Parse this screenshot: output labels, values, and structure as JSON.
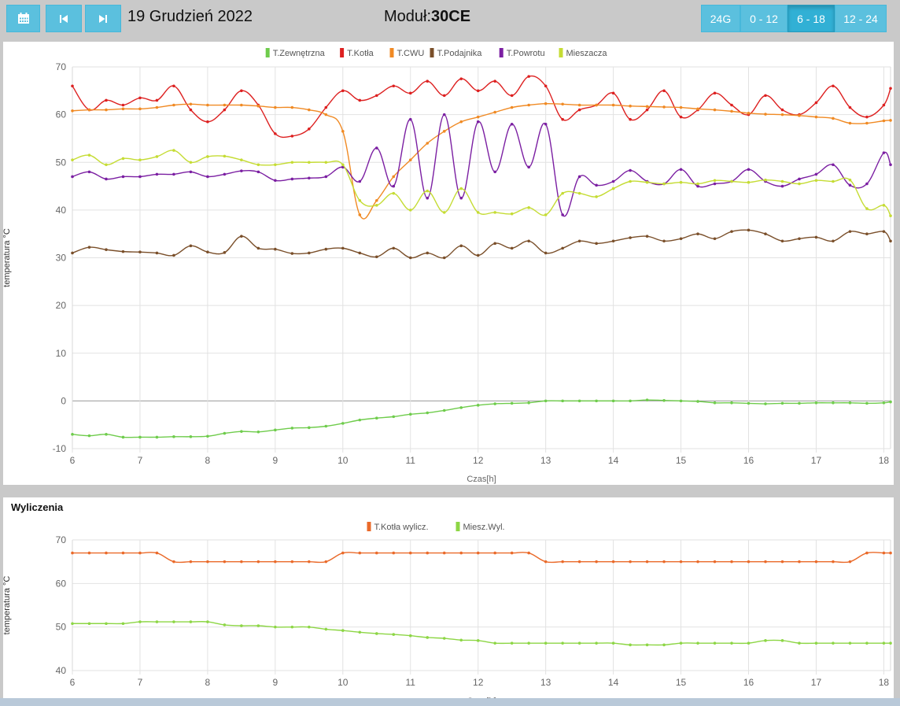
{
  "toolbar": {
    "calendar_icon": "calendar-icon",
    "prev_icon": "skip-back-icon",
    "next_icon": "skip-forward-icon",
    "date": "19 Grudzień 2022",
    "module_label": "Moduł:",
    "module_value": "30CE",
    "ranges": [
      {
        "label": "24G",
        "active": false
      },
      {
        "label": "0 - 12",
        "active": false
      },
      {
        "label": "6 - 18",
        "active": true
      },
      {
        "label": "12 - 24",
        "active": false
      }
    ]
  },
  "chart_data": [
    {
      "type": "line",
      "title": "",
      "xlabel": "Czas[h]",
      "ylabel": "temperatura °C",
      "xlim": [
        6,
        18.1
      ],
      "ylim": [
        -10,
        70
      ],
      "yticks": [
        -10,
        0,
        10,
        20,
        30,
        40,
        50,
        60,
        70
      ],
      "xticks": [
        6,
        7,
        8,
        9,
        10,
        11,
        12,
        13,
        14,
        15,
        16,
        17,
        18
      ],
      "grid": true,
      "legend": "top-center",
      "series": [
        {
          "name": "T.Zewnętrzna",
          "color": "#6fcc4c",
          "x": [
            6,
            6.25,
            6.5,
            6.75,
            7,
            7.25,
            7.5,
            7.75,
            8,
            8.25,
            8.5,
            8.75,
            9,
            9.25,
            9.5,
            9.75,
            10,
            10.25,
            10.5,
            10.75,
            11,
            11.25,
            11.5,
            11.75,
            12,
            12.25,
            12.5,
            12.75,
            13,
            13.25,
            13.5,
            13.75,
            14,
            14.25,
            14.5,
            14.75,
            15,
            15.25,
            15.5,
            15.75,
            16,
            16.25,
            16.5,
            16.75,
            17,
            17.25,
            17.5,
            17.75,
            18,
            18.1
          ],
          "y": [
            -7.0,
            -7.3,
            -7.0,
            -7.6,
            -7.6,
            -7.6,
            -7.5,
            -7.5,
            -7.4,
            -6.8,
            -6.4,
            -6.5,
            -6.1,
            -5.7,
            -5.6,
            -5.3,
            -4.7,
            -4.0,
            -3.6,
            -3.3,
            -2.8,
            -2.5,
            -2.0,
            -1.4,
            -0.9,
            -0.6,
            -0.5,
            -0.4,
            0.0,
            0.0,
            0.0,
            0.0,
            0.0,
            0.0,
            0.2,
            0.1,
            0.0,
            -0.1,
            -0.4,
            -0.4,
            -0.5,
            -0.6,
            -0.5,
            -0.5,
            -0.4,
            -0.4,
            -0.4,
            -0.5,
            -0.4,
            -0.2
          ]
        },
        {
          "name": "T.Kotła",
          "color": "#dd2020",
          "x": [
            6,
            6.25,
            6.5,
            6.75,
            7,
            7.25,
            7.5,
            7.75,
            8,
            8.25,
            8.5,
            8.75,
            9,
            9.25,
            9.5,
            9.75,
            10,
            10.25,
            10.5,
            10.75,
            11,
            11.25,
            11.5,
            11.75,
            12,
            12.25,
            12.5,
            12.75,
            13,
            13.25,
            13.5,
            13.75,
            14,
            14.25,
            14.5,
            14.75,
            15,
            15.25,
            15.5,
            15.75,
            16,
            16.25,
            16.5,
            16.75,
            17,
            17.25,
            17.5,
            17.75,
            18,
            18.1
          ],
          "y": [
            66,
            61,
            63,
            62,
            63.5,
            63,
            66,
            61,
            58.5,
            61,
            65,
            62,
            56,
            55.5,
            57,
            61.5,
            65,
            63,
            64,
            66,
            64.5,
            67,
            64,
            67.5,
            65,
            67,
            64,
            68,
            66,
            59,
            61,
            62,
            64.5,
            59,
            61,
            65,
            59.5,
            61,
            64.5,
            62,
            60,
            64,
            61,
            60,
            62.5,
            66,
            61.5,
            59.5,
            62,
            65.5
          ]
        },
        {
          "name": "T.CWU",
          "color": "#f08a24",
          "x": [
            6,
            6.25,
            6.5,
            6.75,
            7,
            7.25,
            7.5,
            7.75,
            8,
            8.25,
            8.5,
            8.75,
            9,
            9.25,
            9.5,
            9.75,
            10,
            10.25,
            10.5,
            10.75,
            11,
            11.25,
            11.5,
            11.75,
            12,
            12.25,
            12.5,
            12.75,
            13,
            13.25,
            13.5,
            13.75,
            14,
            14.25,
            14.5,
            14.75,
            15,
            15.25,
            15.5,
            15.75,
            16,
            16.25,
            16.5,
            16.75,
            17,
            17.25,
            17.5,
            17.75,
            18,
            18.1
          ],
          "y": [
            60.8,
            61,
            61,
            61.2,
            61.2,
            61.5,
            62,
            62.2,
            62,
            62,
            62,
            61.8,
            61.5,
            61.5,
            61,
            60,
            56.5,
            39,
            42,
            47,
            50.5,
            54,
            56.5,
            58.5,
            59.5,
            60.5,
            61.5,
            62,
            62.3,
            62.2,
            62,
            62,
            62,
            61.8,
            61.7,
            61.6,
            61.5,
            61.2,
            61,
            60.7,
            60.3,
            60.1,
            60,
            59.8,
            59.5,
            59.2,
            58.2,
            58.2,
            58.7,
            58.8
          ]
        },
        {
          "name": "T.Podajnika",
          "color": "#7a4f2a",
          "x": [
            6,
            6.25,
            6.5,
            6.75,
            7,
            7.25,
            7.5,
            7.75,
            8,
            8.25,
            8.5,
            8.75,
            9,
            9.25,
            9.5,
            9.75,
            10,
            10.25,
            10.5,
            10.75,
            11,
            11.25,
            11.5,
            11.75,
            12,
            12.25,
            12.5,
            12.75,
            13,
            13.25,
            13.5,
            13.75,
            14,
            14.25,
            14.5,
            14.75,
            15,
            15.25,
            15.5,
            15.75,
            16,
            16.25,
            16.5,
            16.75,
            17,
            17.25,
            17.5,
            17.75,
            18,
            18.1
          ],
          "y": [
            31,
            32.2,
            31.7,
            31.3,
            31.2,
            31.0,
            30.5,
            32.5,
            31.2,
            31.1,
            34.5,
            32.0,
            31.8,
            30.9,
            31.0,
            31.8,
            32.0,
            31.0,
            30.2,
            32.0,
            30.0,
            31.0,
            30.0,
            32.5,
            30.5,
            33.0,
            32.0,
            33.5,
            31.0,
            32.0,
            33.5,
            33.0,
            33.5,
            34.2,
            34.5,
            33.5,
            34.0,
            35.0,
            34.0,
            35.5,
            35.8,
            35.0,
            33.5,
            34.0,
            34.3,
            33.5,
            35.5,
            35.0,
            35.5,
            33.5
          ]
        },
        {
          "name": "T.Powrotu",
          "color": "#7b1fa2",
          "x": [
            6,
            6.25,
            6.5,
            6.75,
            7,
            7.25,
            7.5,
            7.75,
            8,
            8.25,
            8.5,
            8.75,
            9,
            9.25,
            9.5,
            9.75,
            10,
            10.25,
            10.5,
            10.75,
            11,
            11.25,
            11.5,
            11.75,
            12,
            12.25,
            12.5,
            12.75,
            13,
            13.25,
            13.5,
            13.75,
            14,
            14.25,
            14.5,
            14.75,
            15,
            15.25,
            15.5,
            15.75,
            16,
            16.25,
            16.5,
            16.75,
            17,
            17.25,
            17.5,
            17.75,
            18,
            18.1
          ],
          "y": [
            47,
            48,
            46.5,
            47,
            47,
            47.5,
            47.5,
            48,
            47,
            47.5,
            48.2,
            48,
            46.2,
            46.5,
            46.7,
            47,
            49,
            46,
            53,
            45,
            59,
            42.5,
            60,
            42.5,
            58.5,
            48,
            58,
            49,
            58,
            39,
            47,
            45.2,
            46,
            48.3,
            46,
            45.5,
            48.5,
            45,
            45.5,
            46,
            48.5,
            46,
            45,
            46.5,
            47.5,
            49.5,
            45.2,
            45.5,
            52,
            49.5
          ]
        },
        {
          "name": "Mieszacza",
          "color": "#c5dc34",
          "x": [
            6,
            6.25,
            6.5,
            6.75,
            7,
            7.25,
            7.5,
            7.75,
            8,
            8.25,
            8.5,
            8.75,
            9,
            9.25,
            9.5,
            9.75,
            10,
            10.25,
            10.5,
            10.75,
            11,
            11.25,
            11.5,
            11.75,
            12,
            12.25,
            12.5,
            12.75,
            13,
            13.25,
            13.5,
            13.75,
            14,
            14.25,
            14.5,
            14.75,
            15,
            15.25,
            15.5,
            15.75,
            16,
            16.25,
            16.5,
            16.75,
            17,
            17.25,
            17.5,
            17.75,
            18,
            18.1
          ],
          "y": [
            50.5,
            51.5,
            49.5,
            50.8,
            50.5,
            51.2,
            52.5,
            50,
            51.2,
            51.3,
            50.5,
            49.5,
            49.5,
            50,
            50,
            50,
            49.5,
            42,
            41,
            43.5,
            40,
            44,
            39.5,
            44.5,
            39.5,
            39.5,
            39.2,
            40.5,
            39,
            43.5,
            43.5,
            42.8,
            44.5,
            46,
            45.8,
            45.5,
            45.8,
            45.5,
            46.2,
            46,
            45.8,
            46.3,
            46,
            45.5,
            46.2,
            46,
            46.3,
            40.3,
            41,
            38.8
          ]
        }
      ]
    },
    {
      "type": "line",
      "title": "Wyliczenia",
      "xlabel": "Czas[h]",
      "ylabel": "temperatura °C",
      "xlim": [
        6,
        18.1
      ],
      "ylim": [
        40,
        70
      ],
      "yticks": [
        40,
        50,
        60,
        70
      ],
      "xticks": [
        6,
        7,
        8,
        9,
        10,
        11,
        12,
        13,
        14,
        15,
        16,
        17,
        18
      ],
      "grid": true,
      "legend": "top-center",
      "series": [
        {
          "name": "T.Kotła wylicz.",
          "color": "#ea6a2a",
          "x": [
            6,
            6.25,
            6.5,
            6.75,
            7,
            7.25,
            7.5,
            7.75,
            8,
            8.25,
            8.5,
            8.75,
            9,
            9.25,
            9.5,
            9.75,
            10,
            10.25,
            10.5,
            10.75,
            11,
            11.25,
            11.5,
            11.75,
            12,
            12.25,
            12.5,
            12.75,
            13,
            13.25,
            13.5,
            13.75,
            14,
            14.25,
            14.5,
            14.75,
            15,
            15.25,
            15.5,
            15.75,
            16,
            16.25,
            16.5,
            16.75,
            17,
            17.25,
            17.5,
            17.75,
            18,
            18.1
          ],
          "y": [
            67,
            67,
            67,
            67,
            67,
            67,
            65,
            65,
            65,
            65,
            65,
            65,
            65,
            65,
            65,
            65,
            67,
            67,
            67,
            67,
            67,
            67,
            67,
            67,
            67,
            67,
            67,
            67,
            65,
            65,
            65,
            65,
            65,
            65,
            65,
            65,
            65,
            65,
            65,
            65,
            65,
            65,
            65,
            65,
            65,
            65,
            65,
            67,
            67,
            67
          ]
        },
        {
          "name": "Miesz.Wyl.",
          "color": "#8dd645",
          "x": [
            6,
            6.25,
            6.5,
            6.75,
            7,
            7.25,
            7.5,
            7.75,
            8,
            8.25,
            8.5,
            8.75,
            9,
            9.25,
            9.5,
            9.75,
            10,
            10.25,
            10.5,
            10.75,
            11,
            11.25,
            11.5,
            11.75,
            12,
            12.25,
            12.5,
            12.75,
            13,
            13.25,
            13.5,
            13.75,
            14,
            14.25,
            14.5,
            14.75,
            15,
            15.25,
            15.5,
            15.75,
            16,
            16.25,
            16.5,
            16.75,
            17,
            17.25,
            17.5,
            17.75,
            18,
            18.1
          ],
          "y": [
            50.8,
            50.8,
            50.8,
            50.8,
            51.2,
            51.2,
            51.2,
            51.2,
            51.2,
            50.5,
            50.3,
            50.3,
            50,
            50,
            50,
            49.5,
            49.2,
            48.8,
            48.5,
            48.3,
            48,
            47.6,
            47.4,
            47,
            46.9,
            46.3,
            46.3,
            46.3,
            46.3,
            46.3,
            46.3,
            46.3,
            46.3,
            45.9,
            45.9,
            45.9,
            46.3,
            46.3,
            46.3,
            46.3,
            46.3,
            46.9,
            46.9,
            46.3,
            46.3,
            46.3,
            46.3,
            46.3,
            46.3,
            46.3
          ]
        }
      ]
    }
  ]
}
